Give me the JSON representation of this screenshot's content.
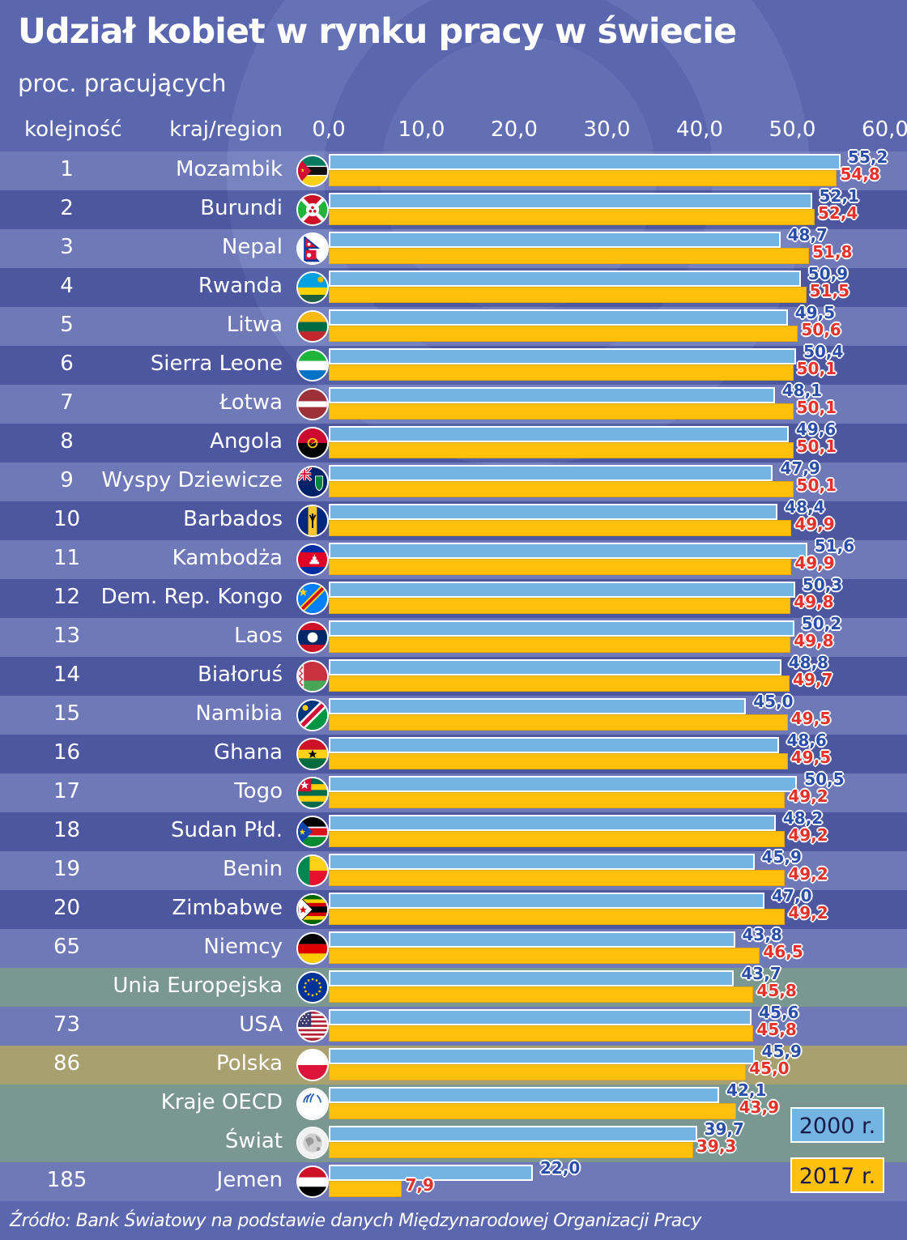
{
  "title": "Udział kobiet w rynku pracy w świecie",
  "subtitle": "proc. pracujących",
  "headers": {
    "rank": "kolejność",
    "country": "kraj/region"
  },
  "legend": {
    "y2000": "2000 r.",
    "y2017": "2017 r."
  },
  "source": "Źródło: Bank Światowy na podstawie danych Międzynarodowej Organizacji Pracy",
  "colors": {
    "background": "#5a66ad",
    "bar2000": "#74b4e3",
    "bar2017": "#ffc10e",
    "label2000": "#2a4ea8",
    "label2017": "#e4322b",
    "highlight_region": "#7b9890",
    "highlight_poland": "#a9a070"
  },
  "chart_data": {
    "type": "bar",
    "orientation": "horizontal",
    "xlim": [
      0,
      60
    ],
    "ticks": [
      "0,0",
      "10,0",
      "20,0",
      "30,0",
      "40,0",
      "50,0",
      "60,0"
    ],
    "grid": true,
    "legend_position": "bottom-right",
    "series": [
      {
        "name": "2000 r.",
        "key": "y2000"
      },
      {
        "name": "2017 r.",
        "key": "y2017"
      }
    ],
    "rows": [
      {
        "rank": "1",
        "country": "Mozambik",
        "flag": "mozambique-flag-icon",
        "y2000": 55.2,
        "y2017": 54.8,
        "label2000": "55,2",
        "label2017": "54,8"
      },
      {
        "rank": "2",
        "country": "Burundi",
        "flag": "burundi-flag-icon",
        "y2000": 52.1,
        "y2017": 52.4,
        "label2000": "52,1",
        "label2017": "52,4"
      },
      {
        "rank": "3",
        "country": "Nepal",
        "flag": "nepal-flag-icon",
        "y2000": 48.7,
        "y2017": 51.8,
        "label2000": "48,7",
        "label2017": "51,8"
      },
      {
        "rank": "4",
        "country": "Rwanda",
        "flag": "rwanda-flag-icon",
        "y2000": 50.9,
        "y2017": 51.5,
        "label2000": "50,9",
        "label2017": "51,5"
      },
      {
        "rank": "5",
        "country": "Litwa",
        "flag": "lithuania-flag-icon",
        "y2000": 49.5,
        "y2017": 50.6,
        "label2000": "49,5",
        "label2017": "50,6"
      },
      {
        "rank": "6",
        "country": "Sierra Leone",
        "flag": "sierra-leone-flag-icon",
        "y2000": 50.4,
        "y2017": 50.1,
        "label2000": "50,4",
        "label2017": "50,1"
      },
      {
        "rank": "7",
        "country": "Łotwa",
        "flag": "latvia-flag-icon",
        "y2000": 48.1,
        "y2017": 50.1,
        "label2000": "48,1",
        "label2017": "50,1"
      },
      {
        "rank": "8",
        "country": "Angola",
        "flag": "angola-flag-icon",
        "y2000": 49.6,
        "y2017": 50.1,
        "label2000": "49,6",
        "label2017": "50,1"
      },
      {
        "rank": "9",
        "country": "Wyspy Dziewicze",
        "flag": "virgin-islands-flag-icon",
        "y2000": 47.9,
        "y2017": 50.1,
        "label2000": "47,9",
        "label2017": "50,1"
      },
      {
        "rank": "10",
        "country": "Barbados",
        "flag": "barbados-flag-icon",
        "y2000": 48.4,
        "y2017": 49.9,
        "label2000": "48,4",
        "label2017": "49,9"
      },
      {
        "rank": "11",
        "country": "Kambodża",
        "flag": "cambodia-flag-icon",
        "y2000": 51.6,
        "y2017": 49.9,
        "label2000": "51,6",
        "label2017": "49,9"
      },
      {
        "rank": "12",
        "country": "Dem. Rep. Kongo",
        "flag": "dr-congo-flag-icon",
        "y2000": 50.3,
        "y2017": 49.8,
        "label2000": "50,3",
        "label2017": "49,8"
      },
      {
        "rank": "13",
        "country": "Laos",
        "flag": "laos-flag-icon",
        "y2000": 50.2,
        "y2017": 49.8,
        "label2000": "50,2",
        "label2017": "49,8"
      },
      {
        "rank": "14",
        "country": "Białoruś",
        "flag": "belarus-flag-icon",
        "y2000": 48.8,
        "y2017": 49.7,
        "label2000": "48,8",
        "label2017": "49,7"
      },
      {
        "rank": "15",
        "country": "Namibia",
        "flag": "namibia-flag-icon",
        "y2000": 45.0,
        "y2017": 49.5,
        "label2000": "45,0",
        "label2017": "49,5"
      },
      {
        "rank": "16",
        "country": "Ghana",
        "flag": "ghana-flag-icon",
        "y2000": 48.6,
        "y2017": 49.5,
        "label2000": "48,6",
        "label2017": "49,5"
      },
      {
        "rank": "17",
        "country": "Togo",
        "flag": "togo-flag-icon",
        "y2000": 50.5,
        "y2017": 49.2,
        "label2000": "50,5",
        "label2017": "49,2"
      },
      {
        "rank": "18",
        "country": "Sudan Płd.",
        "flag": "south-sudan-flag-icon",
        "y2000": 48.2,
        "y2017": 49.2,
        "label2000": "48,2",
        "label2017": "49,2"
      },
      {
        "rank": "19",
        "country": "Benin",
        "flag": "benin-flag-icon",
        "y2000": 45.9,
        "y2017": 49.2,
        "label2000": "45,9",
        "label2017": "49,2"
      },
      {
        "rank": "20",
        "country": "Zimbabwe",
        "flag": "zimbabwe-flag-icon",
        "y2000": 47.0,
        "y2017": 49.2,
        "label2000": "47,0",
        "label2017": "49,2"
      },
      {
        "rank": "65",
        "country": "Niemcy",
        "flag": "germany-flag-icon",
        "y2000": 43.8,
        "y2017": 46.5,
        "label2000": "43,8",
        "label2017": "46,5"
      },
      {
        "rank": "",
        "country": "Unia Europejska",
        "flag": "eu-flag-icon",
        "y2000": 43.7,
        "y2017": 45.8,
        "label2000": "43,7",
        "label2017": "45,8"
      },
      {
        "rank": "73",
        "country": "USA",
        "flag": "usa-flag-icon",
        "y2000": 45.6,
        "y2017": 45.8,
        "label2000": "45,6",
        "label2017": "45,8"
      },
      {
        "rank": "86",
        "country": "Polska",
        "flag": "poland-flag-icon",
        "y2000": 45.9,
        "y2017": 45.0,
        "label2000": "45,9",
        "label2017": "45,0"
      },
      {
        "rank": "",
        "country": "Kraje OECD",
        "flag": "oecd-logo-icon",
        "y2000": 42.1,
        "y2017": 43.9,
        "label2000": "42,1",
        "label2017": "43,9"
      },
      {
        "rank": "",
        "country": "Świat",
        "flag": "globe-icon",
        "y2000": 39.7,
        "y2017": 39.3,
        "label2000": "39,7",
        "label2017": "39,3"
      },
      {
        "rank": "185",
        "country": "Jemen",
        "flag": "yemen-flag-icon",
        "y2000": 22.0,
        "y2017": 7.9,
        "label2000": "22,0",
        "label2017": "7,9"
      }
    ]
  }
}
